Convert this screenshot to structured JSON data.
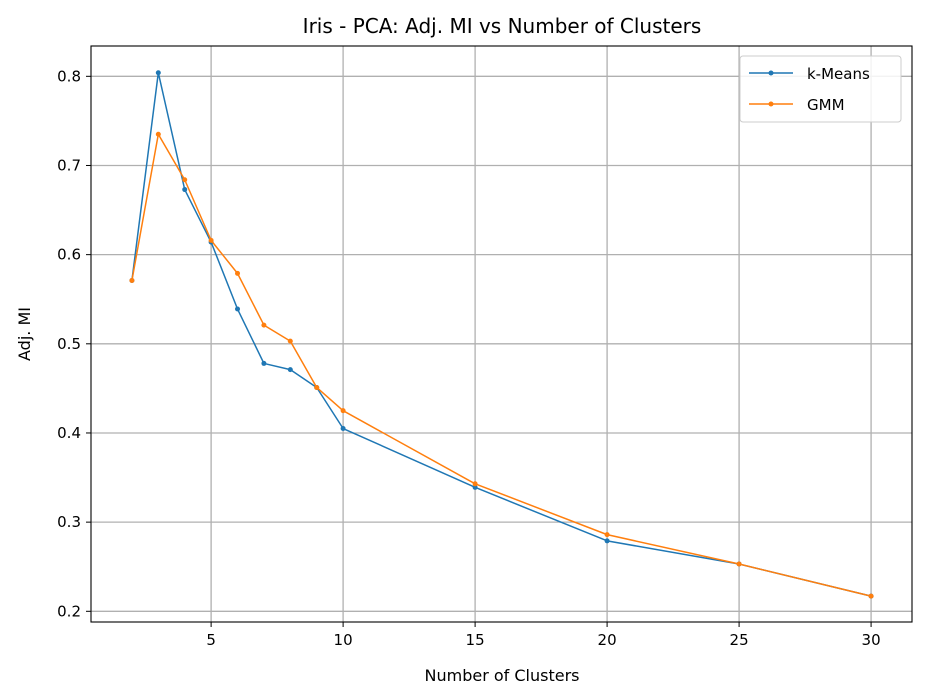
{
  "chart_data": {
    "type": "line",
    "title": "Iris - PCA: Adj. MI vs Number of Clusters",
    "xlabel": "Number of Clusters",
    "ylabel": "Adj. MI",
    "x": [
      2,
      3,
      4,
      5,
      6,
      7,
      8,
      9,
      10,
      15,
      20,
      25,
      30
    ],
    "xlim": [
      0.45,
      31.55
    ],
    "ylim": [
      0.188,
      0.834
    ],
    "xticks": [
      5,
      10,
      15,
      20,
      25,
      30
    ],
    "xtick_labels": [
      "5",
      "10",
      "15",
      "20",
      "25",
      "30"
    ],
    "yticks": [
      0.2,
      0.3,
      0.4,
      0.5,
      0.6,
      0.7,
      0.8
    ],
    "ytick_labels": [
      "0.2",
      "0.3",
      "0.4",
      "0.5",
      "0.6",
      "0.7",
      "0.8"
    ],
    "grid": true,
    "legend_position": "top-right",
    "series": [
      {
        "name": "k-Means",
        "color": "#1f77b4",
        "values": [
          0.571,
          0.804,
          0.673,
          0.614,
          0.539,
          0.478,
          0.471,
          0.451,
          0.405,
          0.339,
          0.279,
          0.253,
          0.217
        ]
      },
      {
        "name": "GMM",
        "color": "#ff7f0e",
        "values": [
          0.571,
          0.735,
          0.684,
          0.616,
          0.579,
          0.521,
          0.503,
          0.451,
          0.425,
          0.343,
          0.286,
          0.253,
          0.217
        ]
      }
    ]
  }
}
